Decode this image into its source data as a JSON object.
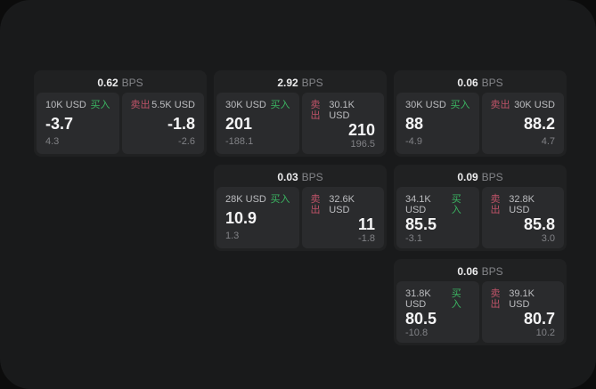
{
  "labels": {
    "bps": "BPS",
    "buy": "买入",
    "sell": "卖出"
  },
  "colors": {
    "buy": "#3bb662",
    "sell": "#bf5368",
    "panel_bg": "#191a1b",
    "card_bg": "#202122",
    "tile_bg": "#2a2b2d",
    "page_bg": "#0c0c0c"
  },
  "cards": [
    {
      "row": 1,
      "col": 1,
      "bps": "0.62",
      "buy": {
        "notional": "10K USD",
        "price": "-3.7",
        "delta": "4.3"
      },
      "sell": {
        "notional": "5.5K USD",
        "price": "-1.8",
        "delta": "-2.6"
      }
    },
    {
      "row": 1,
      "col": 2,
      "bps": "2.92",
      "buy": {
        "notional": "30K USD",
        "price": "201",
        "delta": "-188.1"
      },
      "sell": {
        "notional": "30.1K USD",
        "price": "210",
        "delta": "196.5"
      }
    },
    {
      "row": 1,
      "col": 3,
      "bps": "0.06",
      "buy": {
        "notional": "30K USD",
        "price": "88",
        "delta": "-4.9"
      },
      "sell": {
        "notional": "30K USD",
        "price": "88.2",
        "delta": "4.7"
      }
    },
    {
      "row": 2,
      "col": 2,
      "bps": "0.03",
      "buy": {
        "notional": "28K USD",
        "price": "10.9",
        "delta": "1.3"
      },
      "sell": {
        "notional": "32.6K USD",
        "price": "11",
        "delta": "-1.8"
      }
    },
    {
      "row": 2,
      "col": 3,
      "bps": "0.09",
      "buy": {
        "notional": "34.1K USD",
        "price": "85.5",
        "delta": "-3.1"
      },
      "sell": {
        "notional": "32.8K USD",
        "price": "85.8",
        "delta": "3.0"
      }
    },
    {
      "row": 3,
      "col": 3,
      "bps": "0.06",
      "buy": {
        "notional": "31.8K USD",
        "price": "80.5",
        "delta": "-10.8"
      },
      "sell": {
        "notional": "39.1K USD",
        "price": "80.7",
        "delta": "10.2"
      }
    }
  ]
}
